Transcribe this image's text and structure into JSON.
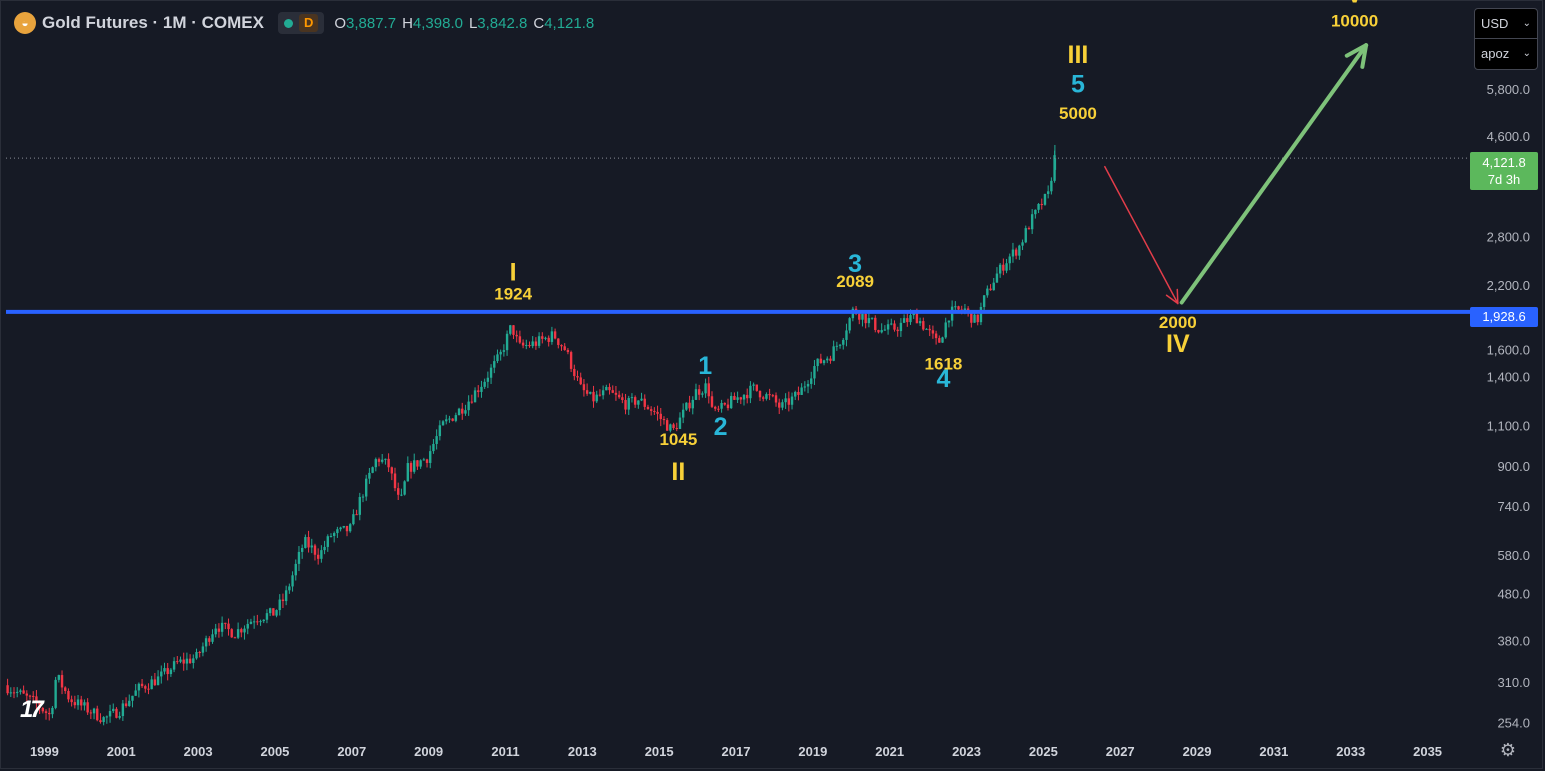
{
  "header": {
    "symbol_icon": "gold-coin-icon",
    "title": "Gold Futures · 1M · COMEX",
    "market_status": "green-dot-icon",
    "badge": "D",
    "ohlc": [
      {
        "key": "O",
        "value": "3,887.7"
      },
      {
        "key": "H",
        "value": "4,398.0"
      },
      {
        "key": "L",
        "value": "3,842.8"
      },
      {
        "key": "C",
        "value": "4,121.8"
      }
    ]
  },
  "controls": {
    "currency": "USD",
    "unit": "apoz"
  },
  "price_tags": {
    "last_price": "4,121.8",
    "countdown": "7d 3h",
    "line_price": "1,928.6"
  },
  "colors": {
    "background": "#161a25",
    "up": "#22ab94",
    "down": "#f23645",
    "level_line": "#2962ff",
    "wave_yellow": "#f7d038",
    "wave_cyan": "#29b6d8",
    "arrow_down": "#e23d4a",
    "arrow_up": "#7ec27a",
    "last_tag": "#5cb85c"
  },
  "chart_data": {
    "type": "candlestick",
    "scale": "log",
    "x_range": [
      1998.5,
      2036.5
    ],
    "y_range": [
      235,
      9000
    ],
    "y_ticks": [
      "254.0",
      "310.0",
      "380.0",
      "480.0",
      "580.0",
      "740.0",
      "900.0",
      "1,100.0",
      "1,400.0",
      "1,600.0",
      "2,200.0",
      "2,800.0",
      "4,600.0",
      "5,800.0"
    ],
    "x_ticks": [
      "1999",
      "2001",
      "2003",
      "2005",
      "2007",
      "2009",
      "2011",
      "2013",
      "2015",
      "2017",
      "2019",
      "2021",
      "2023",
      "2025",
      "2027",
      "2029",
      "2031",
      "2033",
      "2035"
    ],
    "series_path": [
      [
        1998.5,
        305
      ],
      [
        1999.3,
        280
      ],
      [
        1999.7,
        262
      ],
      [
        1999.85,
        320
      ],
      [
        2000.2,
        285
      ],
      [
        2001.1,
        258
      ],
      [
        2001.5,
        270
      ],
      [
        2002.0,
        300
      ],
      [
        2002.5,
        315
      ],
      [
        2003.0,
        340
      ],
      [
        2003.5,
        350
      ],
      [
        2004.0,
        410
      ],
      [
        2004.5,
        395
      ],
      [
        2005.0,
        425
      ],
      [
        2005.5,
        435
      ],
      [
        2005.8,
        470
      ],
      [
        2006.3,
        620
      ],
      [
        2006.7,
        580
      ],
      [
        2007.0,
        640
      ],
      [
        2007.5,
        660
      ],
      [
        2007.8,
        780
      ],
      [
        2008.2,
        940
      ],
      [
        2008.5,
        900
      ],
      [
        2008.8,
        740
      ],
      [
        2009.0,
        890
      ],
      [
        2009.5,
        940
      ],
      [
        2009.9,
        1100
      ],
      [
        2010.5,
        1220
      ],
      [
        2011.0,
        1380
      ],
      [
        2011.4,
        1550
      ],
      [
        2011.7,
        1800
      ],
      [
        2011.9,
        1620
      ],
      [
        2012.3,
        1650
      ],
      [
        2012.8,
        1720
      ],
      [
        2013.1,
        1600
      ],
      [
        2013.5,
        1320
      ],
      [
        2013.8,
        1250
      ],
      [
        2014.2,
        1300
      ],
      [
        2014.7,
        1220
      ],
      [
        2015.0,
        1250
      ],
      [
        2015.4,
        1180
      ],
      [
        2015.9,
        1070
      ],
      [
        2016.5,
        1300
      ],
      [
        2016.8,
        1340
      ],
      [
        2016.95,
        1160
      ],
      [
        2017.5,
        1250
      ],
      [
        2018.0,
        1320
      ],
      [
        2018.5,
        1250
      ],
      [
        2018.7,
        1200
      ],
      [
        2019.2,
        1290
      ],
      [
        2019.6,
        1480
      ],
      [
        2020.0,
        1560
      ],
      [
        2020.3,
        1700
      ],
      [
        2020.6,
        1950
      ],
      [
        2021.0,
        1850
      ],
      [
        2021.3,
        1760
      ],
      [
        2021.7,
        1780
      ],
      [
        2022.2,
        1900
      ],
      [
        2022.5,
        1770
      ],
      [
        2022.8,
        1640
      ],
      [
        2023.1,
        1920
      ],
      [
        2023.5,
        1950
      ],
      [
        2023.8,
        1830
      ],
      [
        2024.0,
        2050
      ],
      [
        2024.3,
        2300
      ],
      [
        2024.6,
        2500
      ],
      [
        2024.9,
        2650
      ],
      [
        2025.2,
        3000
      ],
      [
        2025.5,
        3300
      ],
      [
        2025.7,
        3450
      ],
      [
        2025.8,
        4121.8
      ]
    ],
    "last_candle": {
      "x": 2025.8,
      "open": 3887.7,
      "high": 4398.0,
      "low": 3842.8,
      "close": 4121.8
    },
    "horizontal_line": {
      "price": 1928.6,
      "label": "1,928.6"
    },
    "last_price_line": 4121.8,
    "annotations": [
      {
        "text": "I",
        "x": 2011.7,
        "y": 2250,
        "color": "yellow",
        "size": "big"
      },
      {
        "text": "1924",
        "x": 2011.7,
        "y": 2050,
        "color": "yellow",
        "size": "small"
      },
      {
        "text": "II",
        "x": 2016.0,
        "y": 840,
        "color": "yellow",
        "size": "big"
      },
      {
        "text": "1045",
        "x": 2016.0,
        "y": 1000,
        "color": "yellow",
        "size": "small"
      },
      {
        "text": "1",
        "x": 2016.7,
        "y": 1420,
        "color": "cyan",
        "size": "big"
      },
      {
        "text": "2",
        "x": 2017.1,
        "y": 1050,
        "color": "cyan",
        "size": "big"
      },
      {
        "text": "3",
        "x": 2020.6,
        "y": 2350,
        "color": "cyan",
        "size": "big"
      },
      {
        "text": "2089",
        "x": 2020.6,
        "y": 2180,
        "color": "yellow",
        "size": "small"
      },
      {
        "text": "1618",
        "x": 2022.9,
        "y": 1450,
        "color": "yellow",
        "size": "small"
      },
      {
        "text": "4",
        "x": 2022.9,
        "y": 1330,
        "color": "cyan",
        "size": "big"
      },
      {
        "text": "III",
        "x": 2026.4,
        "y": 6600,
        "color": "yellow",
        "size": "big"
      },
      {
        "text": "5",
        "x": 2026.4,
        "y": 5700,
        "color": "cyan",
        "size": "big"
      },
      {
        "text": "5000",
        "x": 2026.4,
        "y": 5000,
        "color": "yellow",
        "size": "small"
      },
      {
        "text": "2000",
        "x": 2029.0,
        "y": 1780,
        "color": "yellow",
        "size": "small"
      },
      {
        "text": "IV",
        "x": 2029.0,
        "y": 1580,
        "color": "yellow",
        "size": "big"
      },
      {
        "text": "V",
        "x": 2033.6,
        "y": 8900,
        "color": "yellow",
        "size": "big"
      },
      {
        "text": "10000",
        "x": 2033.6,
        "y": 7900,
        "color": "yellow",
        "size": "small"
      }
    ],
    "arrows": [
      {
        "from": [
          2027.1,
          3950
        ],
        "to": [
          2029.0,
          2010
        ],
        "color": "red"
      },
      {
        "from": [
          2029.1,
          2020
        ],
        "to": [
          2033.9,
          7200
        ],
        "color": "green"
      }
    ]
  }
}
